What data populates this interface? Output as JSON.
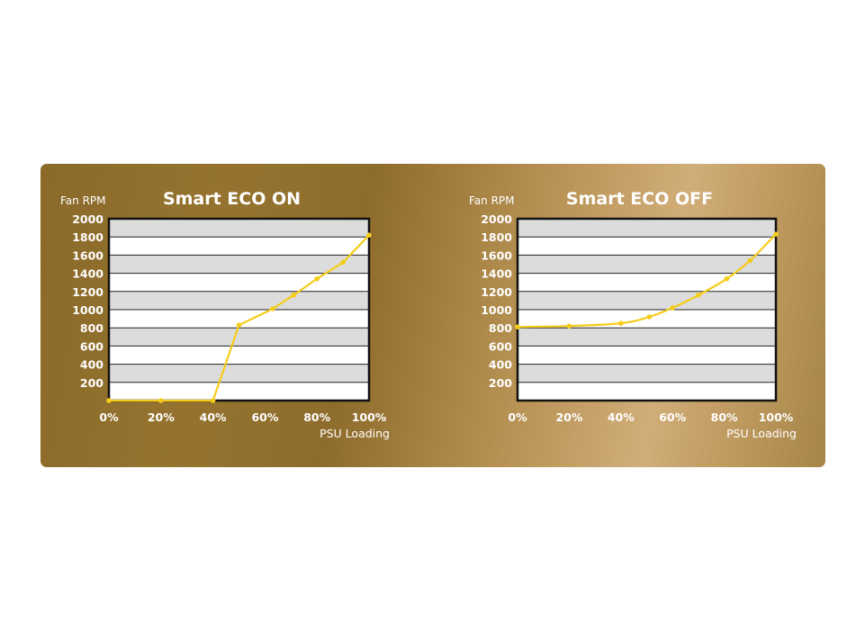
{
  "chart_data": [
    {
      "type": "line",
      "title": "Smart ECO ON",
      "ylabel": "Fan RPM",
      "xlabel": "PSU Loading",
      "ylim": [
        0,
        2000
      ],
      "xlim": [
        0,
        100
      ],
      "y_ticks": [
        "200",
        "400",
        "600",
        "800",
        "1000",
        "1200",
        "1400",
        "1600",
        "1800",
        "2000"
      ],
      "x_ticks": [
        "0%",
        "20%",
        "40%",
        "60%",
        "80%",
        "100%"
      ],
      "grid": true,
      "line_color": "#f5cc1a",
      "series": [
        {
          "x": [
            0,
            20,
            40,
            50,
            63,
            71,
            80,
            90,
            100
          ],
          "y": [
            0,
            0,
            0,
            830,
            1010,
            1160,
            1340,
            1520,
            1820
          ]
        }
      ]
    },
    {
      "type": "line",
      "title": "Smart ECO OFF",
      "ylabel": "Fan RPM",
      "xlabel": "PSU Loading",
      "ylim": [
        0,
        2000
      ],
      "xlim": [
        0,
        100
      ],
      "y_ticks": [
        "200",
        "400",
        "600",
        "800",
        "1000",
        "1200",
        "1400",
        "1600",
        "1800",
        "2000"
      ],
      "x_ticks": [
        "0%",
        "20%",
        "40%",
        "60%",
        "80%",
        "100%"
      ],
      "grid": true,
      "line_color": "#f5cc1a",
      "series": [
        {
          "x": [
            0,
            20,
            40,
            51,
            60,
            70,
            81,
            90,
            100
          ],
          "y": [
            810,
            820,
            850,
            920,
            1020,
            1160,
            1340,
            1540,
            1830
          ]
        }
      ]
    }
  ]
}
